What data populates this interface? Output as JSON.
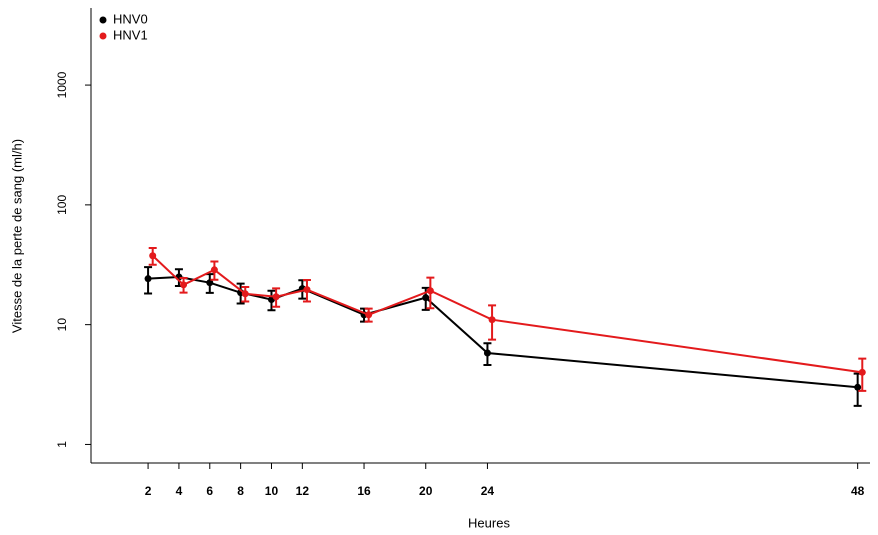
{
  "chart_data": {
    "type": "line",
    "x_label": "Heures",
    "y_label": "Vitesse de la perte de sang (ml/h)",
    "xlim": [
      -1.7,
      48.8
    ],
    "xticks": [
      2,
      4,
      6,
      8,
      10,
      12,
      16,
      20,
      24,
      48
    ],
    "ylim": [
      0.7,
      4400
    ],
    "yticks": [
      1,
      10,
      100,
      1000
    ],
    "log_y": true,
    "legend": "top-left",
    "series": [
      {
        "name": "HNV0",
        "color": "#000000",
        "x": [
          2,
          4,
          6,
          8,
          10,
          12,
          16,
          20,
          24,
          48
        ],
        "values": [
          24.2,
          25.0,
          22.4,
          18.5,
          16.2,
          20.0,
          12.1,
          16.8,
          5.8,
          3.0
        ],
        "errors": [
          6,
          4,
          4,
          3.5,
          3,
          3.5,
          1.5,
          3.5,
          1.2,
          0.9
        ]
      },
      {
        "name": "HNV1",
        "color": "#e31a1c",
        "x": [
          2.3,
          4.3,
          6.3,
          8.3,
          10.3,
          12.3,
          16.3,
          20.3,
          24.3,
          48.3
        ],
        "values": [
          37.6,
          21.5,
          28.7,
          18.1,
          17.1,
          19.6,
          12.1,
          19.2,
          11.0,
          4.0
        ],
        "errors": [
          6,
          3,
          5,
          2.5,
          3,
          4,
          1.5,
          5.5,
          3.5,
          1.2
        ]
      }
    ]
  }
}
